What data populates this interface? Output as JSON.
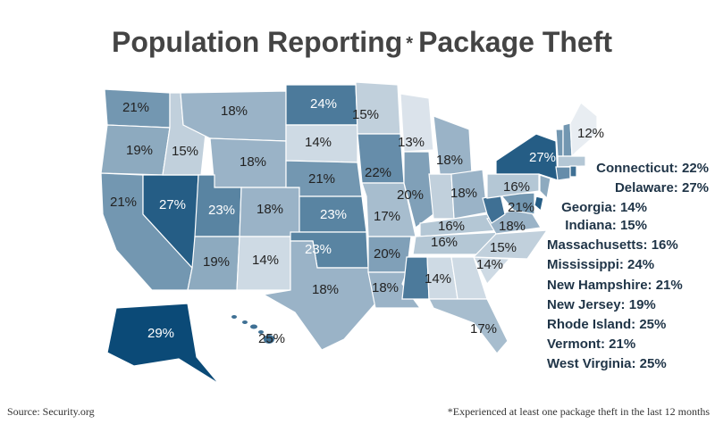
{
  "chart_data": {
    "type": "choropleth",
    "title": "Population Reporting",
    "title_mark": "*",
    "title_end": "Package Theft",
    "source": "Source: Security.org",
    "footnote": "*Experienced at least one package theft in the last 12 months",
    "colors": {
      "low": "#e8edf2",
      "high": "#0b4a77"
    },
    "regions": [
      {
        "value": 21,
        "label": "21%"
      },
      {
        "value": 19,
        "label": "19%"
      },
      {
        "value": 21,
        "label": "21%"
      },
      {
        "value": 27,
        "label": "27%"
      },
      {
        "value": 15,
        "label": "15%"
      },
      {
        "value": 18,
        "label": "18%"
      },
      {
        "value": 18,
        "label": "18%"
      },
      {
        "value": 23,
        "label": "23%"
      },
      {
        "value": 18,
        "label": "18%"
      },
      {
        "value": 19,
        "label": "19%"
      },
      {
        "value": 14,
        "label": "14%"
      },
      {
        "value": 24,
        "label": "24%"
      },
      {
        "value": 14,
        "label": "14%"
      },
      {
        "value": 21,
        "label": "21%"
      },
      {
        "value": 23,
        "label": "23%"
      },
      {
        "value": 23,
        "label": "23%"
      },
      {
        "value": 18,
        "label": "18%"
      },
      {
        "value": 15,
        "label": "15%"
      },
      {
        "value": 22,
        "label": "22%"
      },
      {
        "value": 17,
        "label": "17%"
      },
      {
        "value": 20,
        "label": "20%"
      },
      {
        "value": 18,
        "label": "18%"
      },
      {
        "value": 13,
        "label": "13%"
      },
      {
        "value": 20,
        "label": "20%"
      },
      {
        "value": 18,
        "label": "18%"
      },
      {
        "value": 18,
        "label": "18%"
      },
      {
        "value": 16,
        "label": "16%"
      },
      {
        "value": 16,
        "label": "16%"
      },
      {
        "value": 14,
        "label": "14%"
      },
      {
        "value": 14,
        "label": "14%"
      },
      {
        "value": 15,
        "label": "15%"
      },
      {
        "value": 17,
        "label": "17%"
      },
      {
        "value": 18,
        "label": "18%"
      },
      {
        "value": 21,
        "label": "21%"
      },
      {
        "value": 16,
        "label": "16%"
      },
      {
        "value": 27,
        "label": "27%"
      },
      {
        "value": 12,
        "label": "12%"
      },
      {
        "value": 29,
        "label": "29%"
      },
      {
        "value": 25,
        "label": "25%"
      }
    ],
    "callouts": [
      {
        "value": 22,
        "label": "Connecticut: 22%"
      },
      {
        "value": 27,
        "label": "Delaware: 27%"
      },
      {
        "value": 14,
        "label": "Georgia: 14%"
      },
      {
        "value": 15,
        "label": "Indiana: 15%"
      },
      {
        "value": 16,
        "label": "Massachusetts: 16%"
      },
      {
        "value": 24,
        "label": "Mississippi: 24%"
      },
      {
        "value": 21,
        "label": "New Hampshire: 21%"
      },
      {
        "value": 19,
        "label": "New Jersey: 19%"
      },
      {
        "value": 25,
        "label": "Rhode Island: 25%"
      },
      {
        "value": 21,
        "label": "Vermont: 21%"
      },
      {
        "value": 25,
        "label": "West Virginia: 25%"
      }
    ]
  }
}
